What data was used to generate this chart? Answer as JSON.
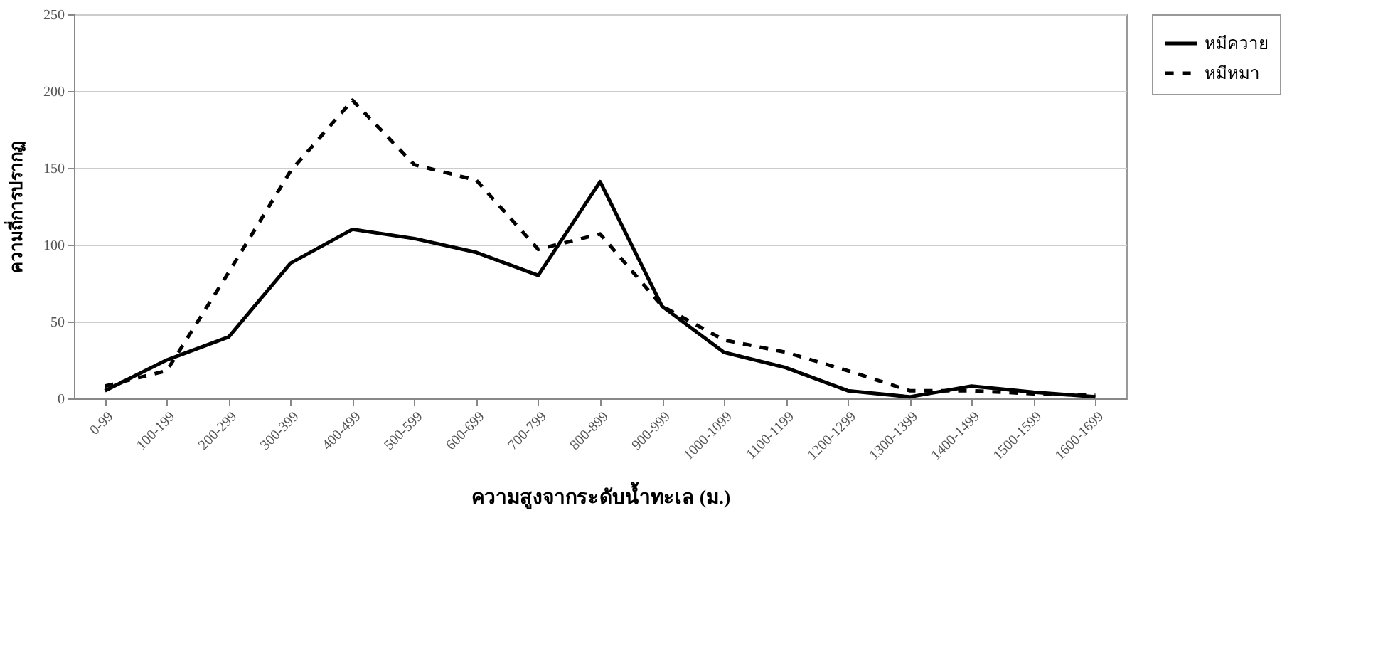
{
  "chart_data": {
    "type": "line",
    "categories": [
      "0-99",
      "100-199",
      "200-299",
      "300-399",
      "400-499",
      "500-599",
      "600-699",
      "700-799",
      "800-899",
      "900-999",
      "1000-1099",
      "1100-1199",
      "1200-1299",
      "1300-1399",
      "1400-1499",
      "1500-1599",
      "1600-1699"
    ],
    "series": [
      {
        "name": "หมีควาย",
        "color": "#000000",
        "line_style": "solid",
        "values": [
          5,
          25,
          40,
          88,
          110,
          104,
          95,
          80,
          141,
          60,
          30,
          20,
          5,
          1,
          8,
          4,
          1
        ]
      },
      {
        "name": "หมีหมา",
        "color": "#000000",
        "line_style": "dashed",
        "values": [
          8,
          18,
          82,
          148,
          194,
          152,
          142,
          97,
          107,
          60,
          38,
          30,
          18,
          5,
          5,
          3,
          2
        ]
      }
    ],
    "xlabel": "ความสูงจากระดับน้ำทะเล (ม.)",
    "ylabel": "ความถี่การปรากฏ",
    "ylim": [
      0,
      250
    ],
    "yticks": [
      0,
      50,
      100,
      150,
      200,
      250
    ],
    "grid": "y",
    "legend": "right",
    "marker": "none"
  }
}
